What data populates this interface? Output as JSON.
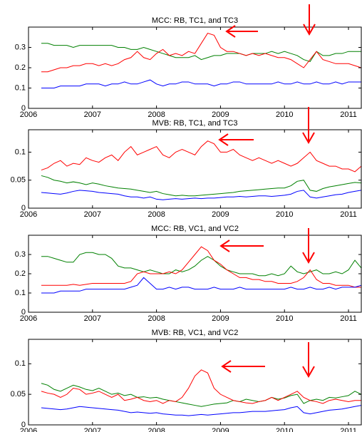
{
  "chart_data": [
    {
      "type": "line",
      "title": "MCC: RB, TC1, and TC3",
      "x": [
        2006.2,
        2006.3,
        2006.4,
        2006.5,
        2006.6,
        2006.7,
        2006.8,
        2006.9,
        2007.0,
        2007.1,
        2007.2,
        2007.3,
        2007.4,
        2007.5,
        2007.6,
        2007.7,
        2007.8,
        2007.9,
        2008.0,
        2008.1,
        2008.2,
        2008.3,
        2008.4,
        2008.5,
        2008.6,
        2008.7,
        2008.8,
        2008.9,
        2009.0,
        2009.1,
        2009.2,
        2009.3,
        2009.4,
        2009.5,
        2009.6,
        2009.7,
        2009.8,
        2009.9,
        2010.0,
        2010.1,
        2010.2,
        2010.3,
        2010.4,
        2010.5,
        2010.6,
        2010.7,
        2010.8,
        2010.9,
        2011.0,
        2011.1,
        2011.2
      ],
      "series": [
        {
          "color": "#008000",
          "values": [
            0.32,
            0.32,
            0.31,
            0.31,
            0.31,
            0.3,
            0.31,
            0.31,
            0.31,
            0.31,
            0.31,
            0.31,
            0.3,
            0.3,
            0.29,
            0.29,
            0.3,
            0.29,
            0.28,
            0.27,
            0.26,
            0.25,
            0.25,
            0.25,
            0.26,
            0.24,
            0.25,
            0.26,
            0.26,
            0.27,
            0.27,
            0.27,
            0.26,
            0.27,
            0.27,
            0.27,
            0.28,
            0.27,
            0.28,
            0.27,
            0.26,
            0.24,
            0.23,
            0.28,
            0.26,
            0.26,
            0.27,
            0.27,
            0.28,
            0.28,
            0.28
          ]
        },
        {
          "color": "#ff0000",
          "values": [
            0.18,
            0.18,
            0.19,
            0.2,
            0.2,
            0.21,
            0.21,
            0.22,
            0.22,
            0.21,
            0.22,
            0.21,
            0.22,
            0.24,
            0.25,
            0.28,
            0.25,
            0.24,
            0.27,
            0.29,
            0.26,
            0.27,
            0.26,
            0.28,
            0.27,
            0.32,
            0.37,
            0.36,
            0.3,
            0.28,
            0.28,
            0.27,
            0.26,
            0.27,
            0.26,
            0.27,
            0.26,
            0.25,
            0.25,
            0.24,
            0.22,
            0.2,
            0.24,
            0.28,
            0.24,
            0.23,
            0.22,
            0.22,
            0.22,
            0.21,
            0.2
          ]
        },
        {
          "color": "#0000ff",
          "values": [
            0.1,
            0.1,
            0.1,
            0.11,
            0.11,
            0.11,
            0.11,
            0.12,
            0.12,
            0.12,
            0.11,
            0.12,
            0.12,
            0.13,
            0.12,
            0.12,
            0.13,
            0.14,
            0.12,
            0.11,
            0.12,
            0.12,
            0.13,
            0.13,
            0.12,
            0.12,
            0.12,
            0.11,
            0.12,
            0.12,
            0.13,
            0.13,
            0.12,
            0.12,
            0.12,
            0.12,
            0.12,
            0.13,
            0.12,
            0.12,
            0.13,
            0.12,
            0.12,
            0.13,
            0.12,
            0.12,
            0.13,
            0.12,
            0.13,
            0.13,
            0.13
          ]
        }
      ],
      "xlim": [
        2006,
        2011.2
      ],
      "xticks": [
        2006,
        2007,
        2008,
        2009,
        2010,
        2011
      ],
      "ylim": [
        0,
        0.4
      ],
      "yticks": [
        0,
        0.1,
        0.2,
        0.3
      ]
    },
    {
      "type": "line",
      "title": "MVB: RB, TC1, and TC3",
      "x": [
        2006.2,
        2006.3,
        2006.4,
        2006.5,
        2006.6,
        2006.7,
        2006.8,
        2006.9,
        2007.0,
        2007.1,
        2007.2,
        2007.3,
        2007.4,
        2007.5,
        2007.6,
        2007.7,
        2007.8,
        2007.9,
        2008.0,
        2008.1,
        2008.2,
        2008.3,
        2008.4,
        2008.5,
        2008.6,
        2008.7,
        2008.8,
        2008.9,
        2009.0,
        2009.1,
        2009.2,
        2009.3,
        2009.4,
        2009.5,
        2009.6,
        2009.7,
        2009.8,
        2009.9,
        2010.0,
        2010.1,
        2010.2,
        2010.3,
        2010.4,
        2010.5,
        2010.6,
        2010.7,
        2010.8,
        2010.9,
        2011.0,
        2011.1,
        2011.2
      ],
      "series": [
        {
          "color": "#ff0000",
          "values": [
            0.068,
            0.072,
            0.08,
            0.085,
            0.075,
            0.08,
            0.078,
            0.09,
            0.085,
            0.082,
            0.09,
            0.095,
            0.085,
            0.1,
            0.11,
            0.095,
            0.1,
            0.105,
            0.11,
            0.095,
            0.09,
            0.1,
            0.105,
            0.1,
            0.095,
            0.11,
            0.12,
            0.115,
            0.1,
            0.1,
            0.105,
            0.095,
            0.09,
            0.085,
            0.09,
            0.085,
            0.08,
            0.085,
            0.08,
            0.075,
            0.08,
            0.09,
            0.1,
            0.085,
            0.08,
            0.075,
            0.075,
            0.07,
            0.07,
            0.065,
            0.075
          ]
        },
        {
          "color": "#008000",
          "values": [
            0.058,
            0.055,
            0.05,
            0.048,
            0.045,
            0.047,
            0.045,
            0.042,
            0.045,
            0.043,
            0.04,
            0.038,
            0.036,
            0.035,
            0.034,
            0.032,
            0.03,
            0.028,
            0.03,
            0.026,
            0.024,
            0.022,
            0.023,
            0.022,
            0.022,
            0.023,
            0.024,
            0.025,
            0.026,
            0.027,
            0.028,
            0.03,
            0.031,
            0.032,
            0.033,
            0.034,
            0.035,
            0.036,
            0.036,
            0.04,
            0.048,
            0.05,
            0.032,
            0.03,
            0.035,
            0.038,
            0.04,
            0.042,
            0.044,
            0.046,
            0.045
          ]
        },
        {
          "color": "#0000ff",
          "values": [
            0.028,
            0.027,
            0.026,
            0.025,
            0.027,
            0.03,
            0.032,
            0.031,
            0.03,
            0.028,
            0.027,
            0.026,
            0.025,
            0.022,
            0.02,
            0.02,
            0.018,
            0.02,
            0.016,
            0.015,
            0.016,
            0.017,
            0.016,
            0.017,
            0.018,
            0.017,
            0.018,
            0.018,
            0.019,
            0.02,
            0.02,
            0.021,
            0.02,
            0.021,
            0.022,
            0.022,
            0.021,
            0.022,
            0.023,
            0.025,
            0.03,
            0.032,
            0.02,
            0.018,
            0.02,
            0.022,
            0.024,
            0.025,
            0.028,
            0.03,
            0.032
          ]
        }
      ],
      "xlim": [
        2006,
        2011.2
      ],
      "xticks": [
        2006,
        2007,
        2008,
        2009,
        2010,
        2011
      ],
      "ylim": [
        0,
        0.14
      ],
      "yticks": [
        0,
        0.05,
        0.1
      ]
    },
    {
      "type": "line",
      "title": "MCC: RB, VC1, and VC2",
      "x": [
        2006.2,
        2006.3,
        2006.4,
        2006.5,
        2006.6,
        2006.7,
        2006.8,
        2006.9,
        2007.0,
        2007.1,
        2007.2,
        2007.3,
        2007.4,
        2007.5,
        2007.6,
        2007.7,
        2007.8,
        2007.9,
        2008.0,
        2008.1,
        2008.2,
        2008.3,
        2008.4,
        2008.5,
        2008.6,
        2008.7,
        2008.8,
        2008.9,
        2009.0,
        2009.1,
        2009.2,
        2009.3,
        2009.4,
        2009.5,
        2009.6,
        2009.7,
        2009.8,
        2009.9,
        2010.0,
        2010.1,
        2010.2,
        2010.3,
        2010.4,
        2010.5,
        2010.6,
        2010.7,
        2010.8,
        2010.9,
        2011.0,
        2011.1,
        2011.2
      ],
      "series": [
        {
          "color": "#008000",
          "values": [
            0.29,
            0.29,
            0.28,
            0.27,
            0.26,
            0.26,
            0.3,
            0.31,
            0.31,
            0.3,
            0.3,
            0.28,
            0.24,
            0.23,
            0.23,
            0.22,
            0.21,
            0.22,
            0.21,
            0.2,
            0.2,
            0.22,
            0.21,
            0.22,
            0.24,
            0.27,
            0.29,
            0.27,
            0.24,
            0.22,
            0.21,
            0.2,
            0.2,
            0.2,
            0.19,
            0.19,
            0.2,
            0.19,
            0.2,
            0.24,
            0.21,
            0.2,
            0.21,
            0.22,
            0.2,
            0.2,
            0.21,
            0.2,
            0.22,
            0.27,
            0.23
          ]
        },
        {
          "color": "#ff0000",
          "values": [
            0.14,
            0.14,
            0.14,
            0.14,
            0.14,
            0.145,
            0.14,
            0.145,
            0.15,
            0.15,
            0.15,
            0.15,
            0.15,
            0.15,
            0.16,
            0.2,
            0.21,
            0.2,
            0.2,
            0.2,
            0.21,
            0.2,
            0.22,
            0.26,
            0.3,
            0.34,
            0.32,
            0.27,
            0.25,
            0.22,
            0.2,
            0.18,
            0.18,
            0.17,
            0.17,
            0.16,
            0.16,
            0.15,
            0.15,
            0.15,
            0.16,
            0.18,
            0.22,
            0.17,
            0.15,
            0.15,
            0.14,
            0.14,
            0.14,
            0.13,
            0.13
          ]
        },
        {
          "color": "#0000ff",
          "values": [
            0.1,
            0.1,
            0.1,
            0.11,
            0.11,
            0.11,
            0.11,
            0.12,
            0.12,
            0.12,
            0.12,
            0.12,
            0.12,
            0.12,
            0.13,
            0.14,
            0.18,
            0.15,
            0.12,
            0.12,
            0.13,
            0.12,
            0.13,
            0.13,
            0.12,
            0.12,
            0.12,
            0.13,
            0.12,
            0.12,
            0.12,
            0.13,
            0.12,
            0.12,
            0.12,
            0.12,
            0.12,
            0.12,
            0.12,
            0.13,
            0.12,
            0.12,
            0.13,
            0.12,
            0.12,
            0.13,
            0.12,
            0.13,
            0.13,
            0.13,
            0.14
          ]
        }
      ],
      "xlim": [
        2006,
        2011.2
      ],
      "xticks": [
        2006,
        2007,
        2008,
        2009,
        2010,
        2011
      ],
      "ylim": [
        0,
        0.4
      ],
      "yticks": [
        0,
        0.1,
        0.2,
        0.3
      ]
    },
    {
      "type": "line",
      "title": "MVB: RB, VC1, and VC2",
      "x": [
        2006.2,
        2006.3,
        2006.4,
        2006.5,
        2006.6,
        2006.7,
        2006.8,
        2006.9,
        2007.0,
        2007.1,
        2007.2,
        2007.3,
        2007.4,
        2007.5,
        2007.6,
        2007.7,
        2007.8,
        2007.9,
        2008.0,
        2008.1,
        2008.2,
        2008.3,
        2008.4,
        2008.5,
        2008.6,
        2008.7,
        2008.8,
        2008.9,
        2009.0,
        2009.1,
        2009.2,
        2009.3,
        2009.4,
        2009.5,
        2009.6,
        2009.7,
        2009.8,
        2009.9,
        2010.0,
        2010.1,
        2010.2,
        2010.3,
        2010.4,
        2010.5,
        2010.6,
        2010.7,
        2010.8,
        2010.9,
        2011.0,
        2011.1,
        2011.2
      ],
      "series": [
        {
          "color": "#008000",
          "values": [
            0.068,
            0.065,
            0.058,
            0.055,
            0.06,
            0.065,
            0.062,
            0.058,
            0.056,
            0.06,
            0.055,
            0.05,
            0.052,
            0.048,
            0.05,
            0.045,
            0.046,
            0.044,
            0.045,
            0.042,
            0.04,
            0.038,
            0.036,
            0.034,
            0.032,
            0.03,
            0.032,
            0.034,
            0.035,
            0.036,
            0.04,
            0.038,
            0.042,
            0.04,
            0.038,
            0.04,
            0.045,
            0.042,
            0.044,
            0.048,
            0.05,
            0.035,
            0.04,
            0.042,
            0.04,
            0.045,
            0.044,
            0.046,
            0.048,
            0.055,
            0.05
          ]
        },
        {
          "color": "#ff0000",
          "values": [
            0.055,
            0.052,
            0.05,
            0.045,
            0.05,
            0.06,
            0.058,
            0.05,
            0.052,
            0.055,
            0.05,
            0.045,
            0.05,
            0.04,
            0.042,
            0.045,
            0.04,
            0.038,
            0.04,
            0.035,
            0.04,
            0.038,
            0.045,
            0.06,
            0.08,
            0.09,
            0.085,
            0.06,
            0.05,
            0.045,
            0.04,
            0.038,
            0.036,
            0.035,
            0.038,
            0.04,
            0.045,
            0.04,
            0.045,
            0.05,
            0.055,
            0.045,
            0.04,
            0.038,
            0.035,
            0.04,
            0.042,
            0.04,
            0.038,
            0.04,
            0.04
          ]
        },
        {
          "color": "#0000ff",
          "values": [
            0.028,
            0.027,
            0.026,
            0.025,
            0.026,
            0.028,
            0.03,
            0.029,
            0.028,
            0.027,
            0.026,
            0.025,
            0.024,
            0.022,
            0.02,
            0.021,
            0.02,
            0.019,
            0.02,
            0.018,
            0.017,
            0.016,
            0.016,
            0.015,
            0.016,
            0.017,
            0.016,
            0.017,
            0.018,
            0.019,
            0.02,
            0.02,
            0.021,
            0.022,
            0.022,
            0.022,
            0.023,
            0.024,
            0.025,
            0.028,
            0.03,
            0.02,
            0.018,
            0.02,
            0.022,
            0.024,
            0.025,
            0.026,
            0.028,
            0.03,
            0.032
          ]
        }
      ],
      "xlim": [
        2006,
        2011.2
      ],
      "xticks": [
        2006,
        2007,
        2008,
        2009,
        2010,
        2011
      ],
      "ylim": [
        0,
        0.14
      ],
      "yticks": [
        0,
        0.05,
        0.1
      ]
    }
  ]
}
